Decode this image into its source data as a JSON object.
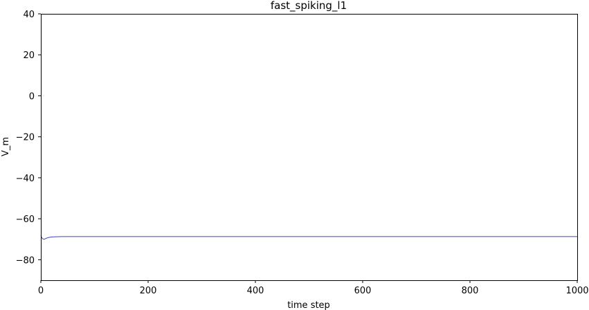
{
  "chart_data": {
    "type": "line",
    "title": "fast_spiking_l1",
    "xlabel": "time step",
    "ylabel": "V_m",
    "xlim": [
      0,
      1000
    ],
    "ylim": [
      -90,
      40
    ],
    "xticks": [
      0,
      200,
      400,
      600,
      800,
      1000
    ],
    "yticks": [
      -80,
      -60,
      -40,
      -20,
      0,
      20,
      40
    ],
    "grid": false,
    "series": [
      {
        "color": "#4040c0",
        "x": [
          0,
          2,
          4,
          6,
          8,
          10,
          15,
          20,
          25,
          30,
          40,
          60,
          100,
          200,
          400,
          600,
          800,
          1000
        ],
        "y": [
          -68.2,
          -69.3,
          -69.9,
          -70.0,
          -69.8,
          -69.5,
          -69.1,
          -68.9,
          -68.8,
          -68.75,
          -68.7,
          -68.7,
          -68.7,
          -68.7,
          -68.7,
          -68.7,
          -68.7,
          -68.7
        ]
      }
    ]
  }
}
